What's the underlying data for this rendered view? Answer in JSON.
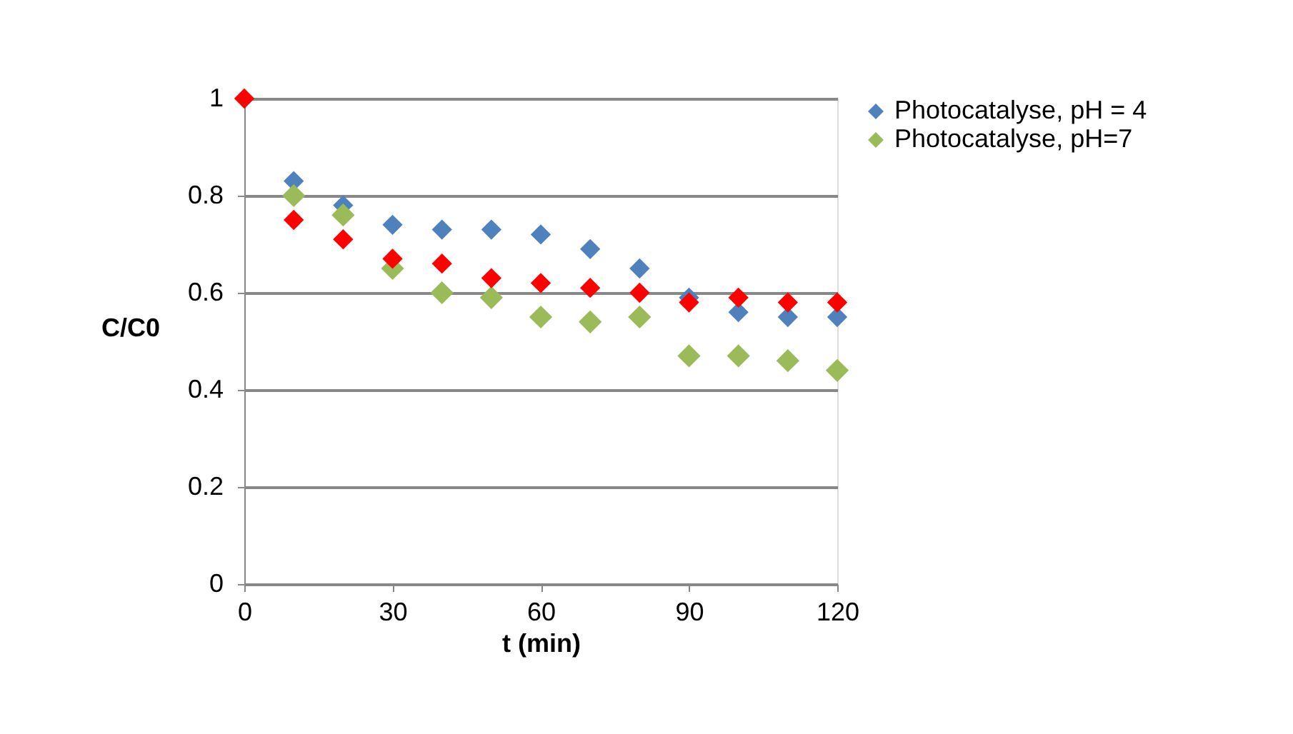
{
  "chart_data": {
    "type": "scatter",
    "xlabel": "t (min)",
    "ylabel": "C/C0",
    "x": [
      0,
      10,
      20,
      30,
      40,
      50,
      60,
      70,
      80,
      90,
      100,
      110,
      120
    ],
    "series": [
      {
        "name": "Photocatalyse, pH = 4",
        "color": "#4f81bd",
        "values": [
          null,
          0.83,
          0.78,
          0.74,
          0.73,
          0.73,
          0.72,
          0.69,
          0.65,
          0.59,
          0.56,
          0.55,
          0.55
        ]
      },
      {
        "name": "Photocatalyse, pH=7",
        "color": "#9bbb59",
        "values": [
          null,
          0.8,
          0.76,
          0.65,
          0.6,
          0.59,
          0.55,
          0.54,
          0.55,
          0.47,
          0.47,
          0.46,
          0.44
        ]
      },
      {
        "color": "#ff0000",
        "values": [
          1.0,
          0.75,
          0.71,
          0.67,
          0.66,
          0.63,
          0.62,
          0.61,
          0.6,
          0.58,
          0.59,
          0.58,
          0.58
        ]
      }
    ],
    "xlim": [
      0,
      120
    ],
    "xticks": [
      0,
      30,
      60,
      90,
      120
    ],
    "ylim": [
      0,
      1
    ],
    "yticks": [
      0,
      0.2,
      0.4,
      0.6,
      0.8,
      1
    ],
    "grid": "y",
    "legend": "top right",
    "marker": "diamond"
  }
}
